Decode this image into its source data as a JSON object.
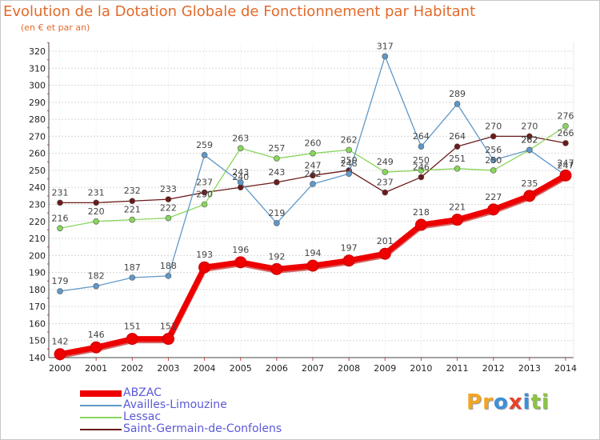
{
  "chart_data": {
    "type": "line",
    "title": "Evolution de la Dotation Globale de Fonctionnement par Habitant",
    "subtitle": "(en € et par an)",
    "xlabel": "",
    "ylabel": "",
    "ylim": [
      140,
      320
    ],
    "ytick_step": 10,
    "grid": "horizontal-dashed",
    "categories": [
      "2000",
      "2001",
      "2002",
      "2003",
      "2004",
      "2005",
      "2006",
      "2007",
      "2008",
      "2009",
      "2010",
      "2011",
      "2012",
      "2013",
      "2014"
    ],
    "series": [
      {
        "name": "Saint-Germain-de-Confolens",
        "color": "#6b1a1a",
        "width": 1.3,
        "marker": 3.5,
        "values": [
          231,
          231,
          232,
          233,
          237,
          240,
          243,
          247,
          250,
          237,
          246,
          264,
          270,
          270,
          266
        ],
        "labels": [
          "231",
          "231",
          "232",
          "233",
          "237",
          "240",
          "243",
          "247",
          "250",
          "237",
          "246",
          "264",
          "270",
          "270",
          "266"
        ]
      },
      {
        "name": "Lessac",
        "color": "#88d65b",
        "width": 1.3,
        "marker": 3.5,
        "values": [
          216,
          220,
          221,
          222,
          230,
          263,
          257,
          260,
          262,
          249,
          250,
          251,
          250,
          262,
          276
        ],
        "labels": [
          "216",
          "220",
          "221",
          "222",
          "230",
          "263",
          "257",
          "260",
          "262",
          "249",
          "250",
          "251",
          "250",
          "262",
          "276"
        ]
      },
      {
        "name": "Availles-Limouzine",
        "color": "#5f98c9",
        "width": 1.3,
        "marker": 3.5,
        "values": [
          179,
          182,
          187,
          188,
          259,
          243,
          219,
          242,
          248,
          317,
          264,
          289,
          256,
          262,
          247
        ],
        "labels": [
          "179",
          "182",
          "187",
          "188",
          "259",
          "243",
          "219",
          "242",
          "248",
          "317",
          "264",
          "289",
          "256",
          "262",
          "247"
        ]
      },
      {
        "name": "ABZAC",
        "color": "#ee0000",
        "width": 7,
        "marker": 7,
        "values": [
          142,
          146,
          151,
          151,
          193,
          196,
          192,
          194,
          197,
          201,
          218,
          221,
          227,
          235,
          247
        ],
        "labels": [
          "142",
          "146",
          "151",
          "151",
          "193",
          "196",
          "192",
          "194",
          "197",
          "201",
          "218",
          "221",
          "227",
          "235",
          "247"
        ]
      }
    ],
    "legend_order": [
      "ABZAC",
      "Availles-Limouzine",
      "Lessac",
      "Saint-Germain-de-Confolens"
    ],
    "legend_position": "bottom-left"
  },
  "logo": {
    "letters": [
      "P",
      "r",
      "o",
      "x",
      "i",
      "t",
      "i"
    ],
    "colors": [
      "#f2a51f",
      "#f2a51f",
      "#3e8fd8",
      "#e8412b",
      "#3e8fd8",
      "#8cc43d",
      "#8cc43d"
    ]
  }
}
